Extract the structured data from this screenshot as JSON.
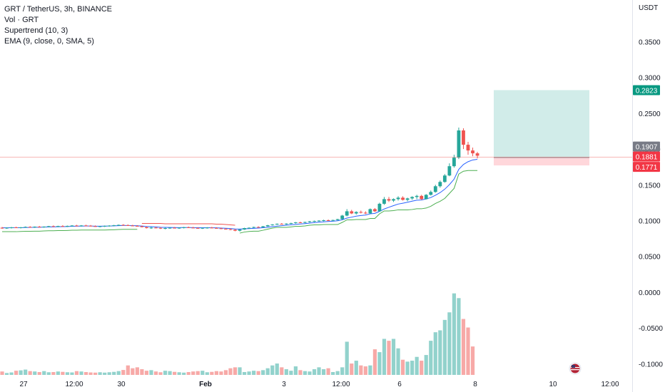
{
  "legend": {
    "title": "GRT / TetherUS, 3h, BINANCE",
    "vol": "Vol · GRT",
    "supertrend": "Supertrend (10, 3)",
    "ema": "EMA (9, close, 0, SMA, 5)"
  },
  "currency": "USDT",
  "colors": {
    "up": "#26a69a",
    "down": "#ef5350",
    "ema": "#2962ff",
    "supertrend_up": "#4caf50",
    "supertrend_down": "#ef5350",
    "current_price_label": "#787b86",
    "target_zone": "#b2dfdb",
    "stop_zone": "#ffcdd2",
    "target_label": "#089981",
    "stop_label": "#f23645"
  },
  "chart_data": {
    "type": "candlestick",
    "x_tick_labels": [
      "27",
      "12:00",
      "30",
      "Feb",
      "3",
      "12:00",
      "6",
      "8",
      "10",
      "12:00"
    ],
    "y_tick_labels": [
      "0.3500",
      "0.3000",
      "0.2500",
      "0.2000",
      "0.1500",
      "0.1000",
      "0.0500",
      "0.0000",
      "-0.0500",
      "-0.1000"
    ],
    "ylim": [
      -0.12,
      0.4
    ],
    "price_labels": {
      "target": "0.2823",
      "current": "0.1907",
      "entry": "0.1881",
      "stop": "0.1771"
    },
    "position": {
      "entry": 0.1881,
      "target": 0.2823,
      "stop": 0.1771
    },
    "candles": [
      [
        0.09,
        0.091,
        0.0885,
        0.0895
      ],
      [
        0.0895,
        0.0905,
        0.0885,
        0.09
      ],
      [
        0.09,
        0.0912,
        0.089,
        0.0905
      ],
      [
        0.0905,
        0.0915,
        0.0895,
        0.0898
      ],
      [
        0.0898,
        0.091,
        0.089,
        0.0906
      ],
      [
        0.0906,
        0.0918,
        0.09,
        0.0912
      ],
      [
        0.0912,
        0.0922,
        0.0902,
        0.0908
      ],
      [
        0.0908,
        0.0918,
        0.0898,
        0.0915
      ],
      [
        0.0915,
        0.0925,
        0.0905,
        0.091
      ],
      [
        0.091,
        0.092,
        0.09,
        0.0916
      ],
      [
        0.0916,
        0.0926,
        0.0906,
        0.0922
      ],
      [
        0.0922,
        0.0932,
        0.0912,
        0.0918
      ],
      [
        0.0918,
        0.0928,
        0.0908,
        0.0924
      ],
      [
        0.0924,
        0.0935,
        0.0914,
        0.092
      ],
      [
        0.092,
        0.093,
        0.091,
        0.0926
      ],
      [
        0.0926,
        0.0936,
        0.0916,
        0.0931
      ],
      [
        0.0931,
        0.094,
        0.092,
        0.0927
      ],
      [
        0.0927,
        0.0937,
        0.0917,
        0.0932
      ],
      [
        0.0932,
        0.0942,
        0.0922,
        0.0928
      ],
      [
        0.0928,
        0.0938,
        0.0918,
        0.0922
      ],
      [
        0.0922,
        0.0932,
        0.0912,
        0.0916
      ],
      [
        0.0916,
        0.0926,
        0.0906,
        0.0921
      ],
      [
        0.0921,
        0.0931,
        0.0911,
        0.0926
      ],
      [
        0.0926,
        0.0936,
        0.0916,
        0.093
      ],
      [
        0.093,
        0.094,
        0.092,
        0.0935
      ],
      [
        0.0935,
        0.0945,
        0.0925,
        0.094
      ],
      [
        0.094,
        0.095,
        0.093,
        0.0936
      ],
      [
        0.0936,
        0.0946,
        0.0926,
        0.0931
      ],
      [
        0.0931,
        0.0941,
        0.0921,
        0.0926
      ],
      [
        0.0926,
        0.0936,
        0.0916,
        0.092
      ],
      [
        0.092,
        0.093,
        0.0905,
        0.0908
      ],
      [
        0.0908,
        0.0918,
        0.089,
        0.0895
      ],
      [
        0.0895,
        0.091,
        0.0885,
        0.0902
      ],
      [
        0.0902,
        0.0912,
        0.0892,
        0.0898
      ],
      [
        0.0898,
        0.0908,
        0.0882,
        0.0888
      ],
      [
        0.0888,
        0.09,
        0.0878,
        0.0895
      ],
      [
        0.0895,
        0.0905,
        0.0885,
        0.09
      ],
      [
        0.09,
        0.091,
        0.089,
        0.0895
      ],
      [
        0.0895,
        0.0905,
        0.0885,
        0.09
      ],
      [
        0.09,
        0.0912,
        0.089,
        0.0906
      ],
      [
        0.0906,
        0.0916,
        0.0896,
        0.0902
      ],
      [
        0.0902,
        0.0912,
        0.0892,
        0.0897
      ],
      [
        0.0897,
        0.0907,
        0.0887,
        0.0893
      ],
      [
        0.0893,
        0.0903,
        0.0883,
        0.0898
      ],
      [
        0.0898,
        0.0908,
        0.0888,
        0.0902
      ],
      [
        0.0902,
        0.0912,
        0.0892,
        0.0897
      ],
      [
        0.0897,
        0.0907,
        0.0887,
        0.0892
      ],
      [
        0.0892,
        0.0902,
        0.088,
        0.0885
      ],
      [
        0.0885,
        0.0895,
        0.0875,
        0.088
      ],
      [
        0.088,
        0.089,
        0.0865,
        0.0872
      ],
      [
        0.0872,
        0.088,
        0.085,
        0.0858
      ],
      [
        0.0858,
        0.088,
        0.0848,
        0.0875
      ],
      [
        0.0875,
        0.09,
        0.087,
        0.0895
      ],
      [
        0.0895,
        0.0905,
        0.0885,
        0.09
      ],
      [
        0.09,
        0.0915,
        0.0895,
        0.091
      ],
      [
        0.091,
        0.092,
        0.09,
        0.0905
      ],
      [
        0.0905,
        0.0925,
        0.09,
        0.092
      ],
      [
        0.092,
        0.094,
        0.0915,
        0.0935
      ],
      [
        0.0935,
        0.095,
        0.093,
        0.0945
      ],
      [
        0.0945,
        0.096,
        0.094,
        0.0955
      ],
      [
        0.0955,
        0.0965,
        0.0945,
        0.095
      ],
      [
        0.095,
        0.0962,
        0.0942,
        0.0958
      ],
      [
        0.0958,
        0.097,
        0.095,
        0.0965
      ],
      [
        0.0965,
        0.098,
        0.0958,
        0.0975
      ],
      [
        0.0975,
        0.0985,
        0.0965,
        0.097
      ],
      [
        0.097,
        0.0985,
        0.0962,
        0.098
      ],
      [
        0.098,
        0.0995,
        0.0972,
        0.099
      ],
      [
        0.099,
        0.1,
        0.098,
        0.0995
      ],
      [
        0.0995,
        0.1005,
        0.0985,
        0.1
      ],
      [
        0.1,
        0.1012,
        0.099,
        0.1005
      ],
      [
        0.1005,
        0.1015,
        0.0995,
        0.1002
      ],
      [
        0.1002,
        0.1012,
        0.099,
        0.1008
      ],
      [
        0.1008,
        0.1025,
        0.1,
        0.102
      ],
      [
        0.102,
        0.108,
        0.1015,
        0.107
      ],
      [
        0.107,
        0.116,
        0.106,
        0.113
      ],
      [
        0.113,
        0.115,
        0.109,
        0.11
      ],
      [
        0.11,
        0.113,
        0.1085,
        0.112
      ],
      [
        0.112,
        0.114,
        0.11,
        0.111
      ],
      [
        0.111,
        0.113,
        0.109,
        0.11
      ],
      [
        0.11,
        0.117,
        0.1095,
        0.116
      ],
      [
        0.116,
        0.1175,
        0.112,
        0.113
      ],
      [
        0.113,
        0.125,
        0.1125,
        0.1235
      ],
      [
        0.1235,
        0.133,
        0.122,
        0.13
      ],
      [
        0.13,
        0.133,
        0.126,
        0.128
      ],
      [
        0.128,
        0.131,
        0.126,
        0.13
      ],
      [
        0.13,
        0.134,
        0.128,
        0.132
      ],
      [
        0.132,
        0.134,
        0.128,
        0.129
      ],
      [
        0.129,
        0.132,
        0.127,
        0.131
      ],
      [
        0.131,
        0.134,
        0.129,
        0.133
      ],
      [
        0.133,
        0.136,
        0.13,
        0.1345
      ],
      [
        0.1345,
        0.136,
        0.129,
        0.13
      ],
      [
        0.13,
        0.137,
        0.1295,
        0.136
      ],
      [
        0.136,
        0.142,
        0.135,
        0.14
      ],
      [
        0.14,
        0.15,
        0.139,
        0.148
      ],
      [
        0.148,
        0.156,
        0.146,
        0.154
      ],
      [
        0.154,
        0.165,
        0.153,
        0.163
      ],
      [
        0.163,
        0.18,
        0.162,
        0.176
      ],
      [
        0.176,
        0.192,
        0.174,
        0.188
      ],
      [
        0.188,
        0.23,
        0.186,
        0.226
      ],
      [
        0.226,
        0.229,
        0.2,
        0.206
      ],
      [
        0.206,
        0.21,
        0.192,
        0.198
      ],
      [
        0.198,
        0.202,
        0.19,
        0.194
      ],
      [
        0.194,
        0.196,
        0.187,
        0.1907
      ]
    ],
    "volume": [
      0.018,
      0.01,
      0.013,
      0.022,
      0.024,
      0.028,
      0.02,
      0.018,
      0.015,
      0.02,
      0.014,
      0.015,
      0.018,
      0.016,
      0.014,
      0.013,
      0.02,
      0.018,
      0.015,
      0.013,
      0.012,
      0.014,
      0.012,
      0.014,
      0.016,
      0.02,
      0.026,
      0.05,
      0.035,
      0.04,
      0.03,
      0.022,
      0.025,
      0.018,
      0.014,
      0.022,
      0.02,
      0.016,
      0.014,
      0.012,
      0.015,
      0.018,
      0.02,
      0.022,
      0.014,
      0.016,
      0.02,
      0.018,
      0.025,
      0.035,
      0.04,
      0.04,
      0.015,
      0.018,
      0.022,
      0.02,
      0.025,
      0.035,
      0.05,
      0.06,
      0.04,
      0.03,
      0.022,
      0.045,
      0.025,
      0.02,
      0.018,
      0.03,
      0.04,
      0.03,
      0.035,
      0.015,
      0.02,
      0.04,
      0.175,
      0.06,
      0.075,
      0.05,
      0.045,
      0.05,
      0.135,
      0.12,
      0.19,
      0.18,
      0.19,
      0.14,
      0.08,
      0.07,
      0.075,
      0.095,
      0.075,
      0.105,
      0.18,
      0.225,
      0.235,
      0.29,
      0.33,
      0.43,
      0.405,
      0.295,
      0.25,
      0.15
    ],
    "ema": [
      0.09,
      0.0899,
      0.09,
      0.09,
      0.0901,
      0.0903,
      0.0904,
      0.0906,
      0.0907,
      0.0909,
      0.0911,
      0.0912,
      0.0914,
      0.0915,
      0.0917,
      0.092,
      0.0921,
      0.0923,
      0.0924,
      0.0924,
      0.0922,
      0.0922,
      0.0923,
      0.0924,
      0.0926,
      0.0929,
      0.0931,
      0.0931,
      0.093,
      0.0928,
      0.0924,
      0.0918,
      0.0915,
      0.0911,
      0.0907,
      0.0905,
      0.0904,
      0.0903,
      0.0902,
      0.0903,
      0.0903,
      0.0902,
      0.09,
      0.09,
      0.09,
      0.09,
      0.0899,
      0.0896,
      0.0893,
      0.0889,
      0.0883,
      0.0882,
      0.0885,
      0.0888,
      0.0892,
      0.0895,
      0.09,
      0.0907,
      0.0915,
      0.0923,
      0.0929,
      0.0935,
      0.0941,
      0.0948,
      0.0953,
      0.0958,
      0.0965,
      0.0971,
      0.0977,
      0.0983,
      0.0987,
      0.0991,
      0.0997,
      0.1011,
      0.1035,
      0.1048,
      0.1062,
      0.1071,
      0.1077,
      0.1094,
      0.1101,
      0.1128,
      0.1162,
      0.1186,
      0.1209,
      0.1231,
      0.1243,
      0.1256,
      0.1271,
      0.1285,
      0.1288,
      0.1302,
      0.1322,
      0.1354,
      0.1391,
      0.1439,
      0.1503,
      0.1579,
      0.1715,
      0.1784,
      0.1823,
      0.1847,
      0.1857
    ],
    "supertrend": [
      0.0845,
      0.0845,
      0.0845,
      0.0845,
      0.0848,
      0.085,
      0.085,
      0.0852,
      0.0852,
      0.0855,
      0.0858,
      0.0858,
      0.086,
      0.086,
      0.0862,
      0.0865,
      0.0865,
      0.0868,
      0.0868,
      0.0868,
      0.0868,
      0.0868,
      0.0868,
      0.087,
      0.0872,
      0.0875,
      0.0878,
      0.0878,
      0.0878,
      0.0878,
      0.096,
      0.096,
      0.096,
      0.096,
      0.096,
      0.0955,
      0.0955,
      0.0955,
      0.0955,
      0.0955,
      0.0955,
      0.0955,
      0.0955,
      0.0955,
      0.0955,
      0.0955,
      0.095,
      0.095,
      0.0945,
      0.094,
      0.0935,
      0.0825,
      0.084,
      0.0848,
      0.0852,
      0.0852,
      0.0865,
      0.088,
      0.0895,
      0.0905,
      0.0905,
      0.0905,
      0.0912,
      0.092,
      0.092,
      0.0925,
      0.0935,
      0.094,
      0.094,
      0.0945,
      0.0945,
      0.0945,
      0.0945,
      0.0975,
      0.101,
      0.101,
      0.1015,
      0.1015,
      0.1015,
      0.103,
      0.103,
      0.1095,
      0.1135,
      0.1135,
      0.114,
      0.115,
      0.115,
      0.115,
      0.1155,
      0.1165,
      0.1165,
      0.1175,
      0.12,
      0.124,
      0.127,
      0.131,
      0.138,
      0.145,
      0.165,
      0.169,
      0.17,
      0.17,
      0.17
    ]
  }
}
